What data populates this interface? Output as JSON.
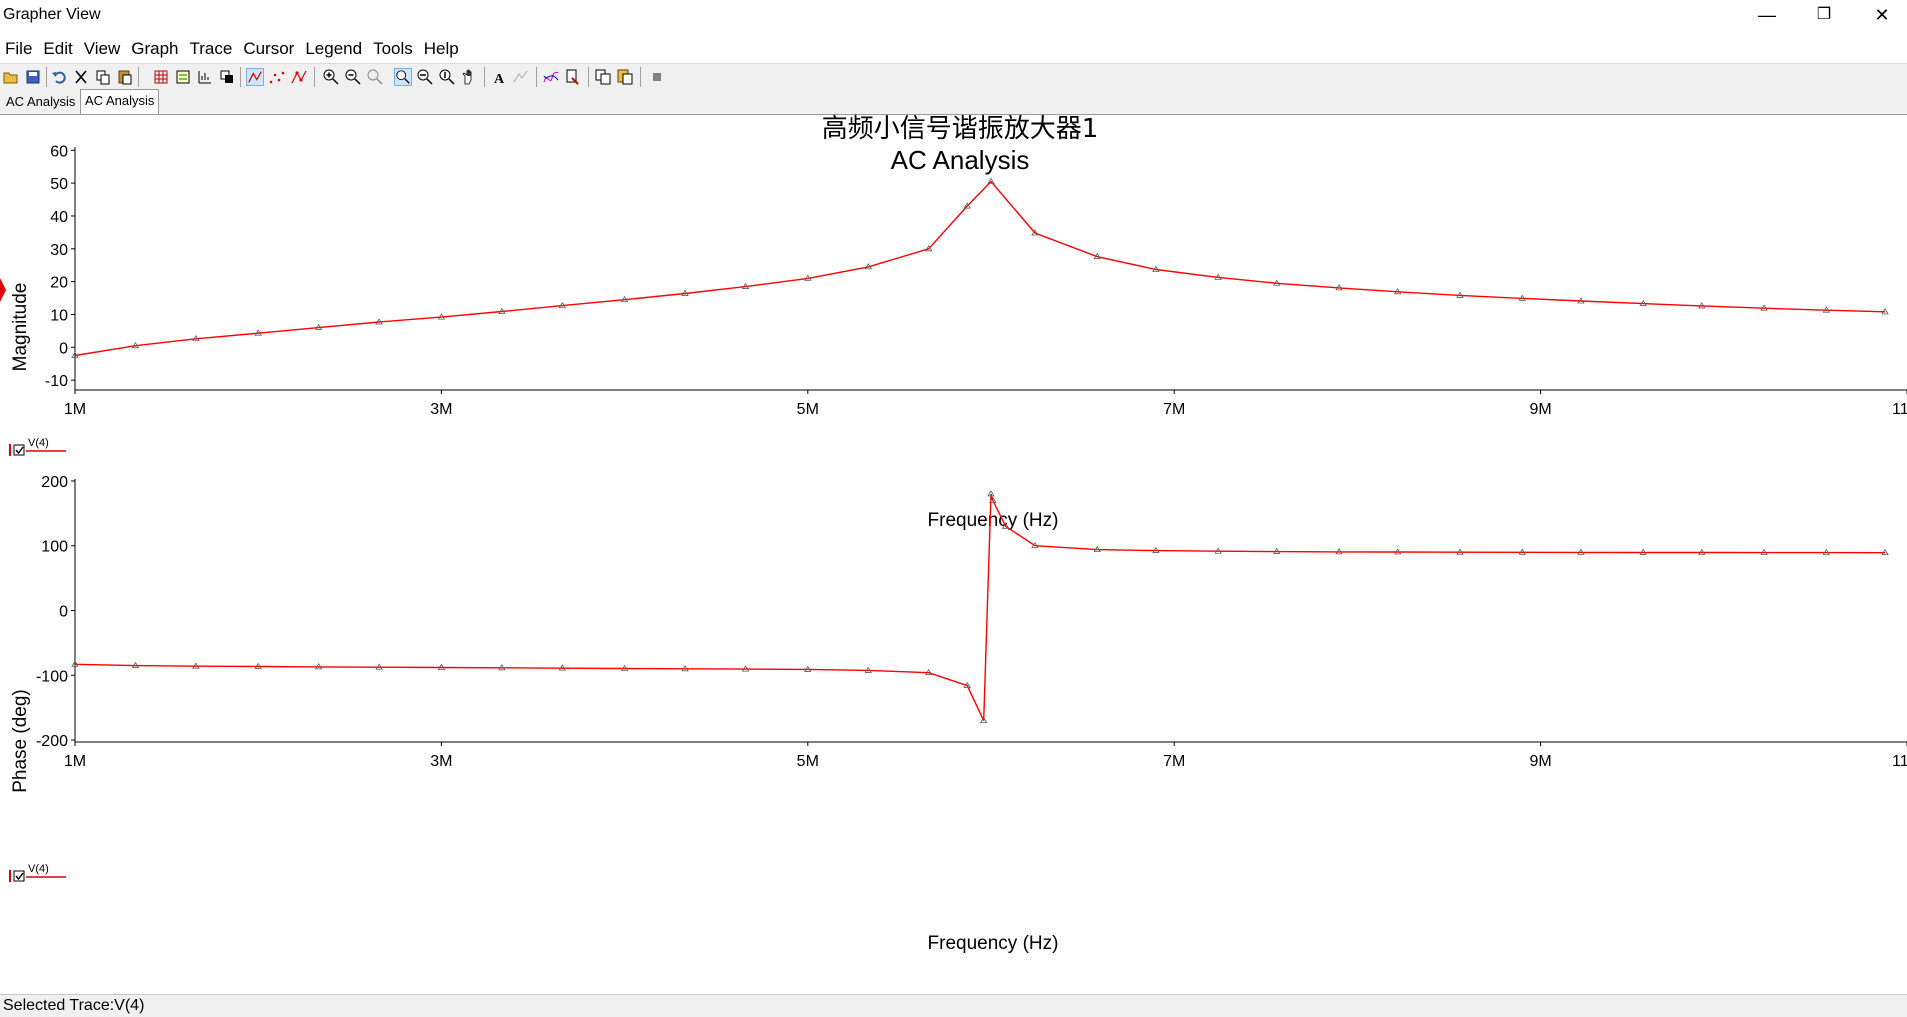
{
  "window": {
    "title": "Grapher View",
    "minimize_glyph": "—",
    "restore_glyph": "❐",
    "close_glyph": "✕"
  },
  "menu": [
    "File",
    "Edit",
    "View",
    "Graph",
    "Trace",
    "Cursor",
    "Legend",
    "Tools",
    "Help"
  ],
  "toolbar_icons": [
    "open-icon",
    "save-icon",
    "undo-icon",
    "cut-icon",
    "copy-icon",
    "paste-icon",
    "grid-icon",
    "legend-icon",
    "toggle-icon",
    "overlay-icon",
    "lines-icon",
    "dots-icon",
    "line-dots-icon",
    "zoom-in-icon",
    "zoom-out-icon",
    "zoom-full-icon",
    "zoom-x-icon",
    "zoom-y-icon",
    "zoom-window-icon",
    "pan-icon",
    "text-icon",
    "label-icon",
    "curve-icon",
    "export-icon",
    "copy-graph-icon",
    "paste-graph-icon",
    "stop-icon"
  ],
  "tabs": [
    "AC Analysis",
    "AC Analysis"
  ],
  "status": {
    "text": "Selected Trace:V(4)"
  },
  "colors": {
    "trace": "#ff0000",
    "axis": "#000000",
    "marker": "#5a5a5a"
  },
  "chart_data": [
    {
      "type": "line",
      "title": "高频小信号谐振放大器1",
      "subtitle": "AC Analysis",
      "xlabel": "Frequency (Hz)",
      "ylabel": "Magnitude",
      "xlim": [
        1000000,
        11000000
      ],
      "ylim": [
        -13,
        61
      ],
      "x_ticks": [
        1000000,
        3000000,
        5000000,
        7000000,
        9000000,
        11000000
      ],
      "x_tick_labels": [
        "1M",
        "3M",
        "5M",
        "7M",
        "9M",
        "11M"
      ],
      "y_ticks": [
        60,
        50,
        40,
        30,
        20,
        10,
        0,
        -10
      ],
      "y_tick_labels": [
        "60",
        "50",
        "40",
        "30",
        "20",
        "10",
        "0",
        "-10"
      ],
      "legend": "V(4)",
      "series": [
        {
          "name": "V(4)",
          "x": [
            1000000,
            1330000,
            1660000,
            2000000,
            2330000,
            2660000,
            3000000,
            3330000,
            3660000,
            4000000,
            4330000,
            4660000,
            5000000,
            5330000,
            5660000,
            5870000,
            6000000,
            6240000,
            6580000,
            6900000,
            7240000,
            7560000,
            7900000,
            8220000,
            8560000,
            8900000,
            9220000,
            9560000,
            9880000,
            10220000,
            10560000,
            10880000
          ],
          "y": [
            -2.5,
            0.5,
            2.6,
            4.3,
            6.0,
            7.7,
            9.2,
            10.9,
            12.7,
            14.5,
            16.4,
            18.5,
            21.0,
            24.5,
            30.0,
            43.0,
            50.5,
            34.8,
            27.6,
            23.7,
            21.3,
            19.5,
            18.1,
            16.9,
            15.8,
            14.9,
            14.1,
            13.3,
            12.6,
            11.9,
            11.3,
            10.8
          ]
        }
      ]
    },
    {
      "type": "line",
      "xlabel": "Frequency (Hz)",
      "ylabel": "Phase (deg)",
      "xlim": [
        1000000,
        11000000
      ],
      "ylim": [
        -203,
        203
      ],
      "x_ticks": [
        1000000,
        3000000,
        5000000,
        7000000,
        9000000,
        11000000
      ],
      "x_tick_labels": [
        "1M",
        "3M",
        "5M",
        "7M",
        "9M",
        "11M"
      ],
      "y_ticks": [
        200,
        100,
        0,
        -100,
        -200
      ],
      "y_tick_labels": [
        "200",
        "100",
        "0",
        "-100",
        "-200"
      ],
      "legend": "V(4)",
      "series": [
        {
          "name": "V(4)",
          "x": [
            1000000,
            1330000,
            1660000,
            2000000,
            2330000,
            2660000,
            3000000,
            3330000,
            3660000,
            4000000,
            4330000,
            4660000,
            5000000,
            5330000,
            5660000,
            5870000,
            5960000,
            6000000,
            6010000,
            6080000,
            6240000,
            6580000,
            6900000,
            7240000,
            7560000,
            7900000,
            8220000,
            8560000,
            8900000,
            9220000,
            9560000,
            9880000,
            10220000,
            10560000,
            10880000
          ],
          "y": [
            -83,
            -85,
            -86,
            -86.5,
            -87,
            -87.5,
            -88,
            -88.5,
            -89,
            -89.5,
            -90,
            -90.5,
            -91,
            -92.5,
            -96,
            -116,
            -170,
            180,
            170,
            130,
            100,
            94,
            92.5,
            91.5,
            91,
            90.5,
            90.3,
            90,
            89.8,
            89.7,
            89.6,
            89.5,
            89.4,
            89.4,
            89.3
          ]
        }
      ]
    }
  ]
}
